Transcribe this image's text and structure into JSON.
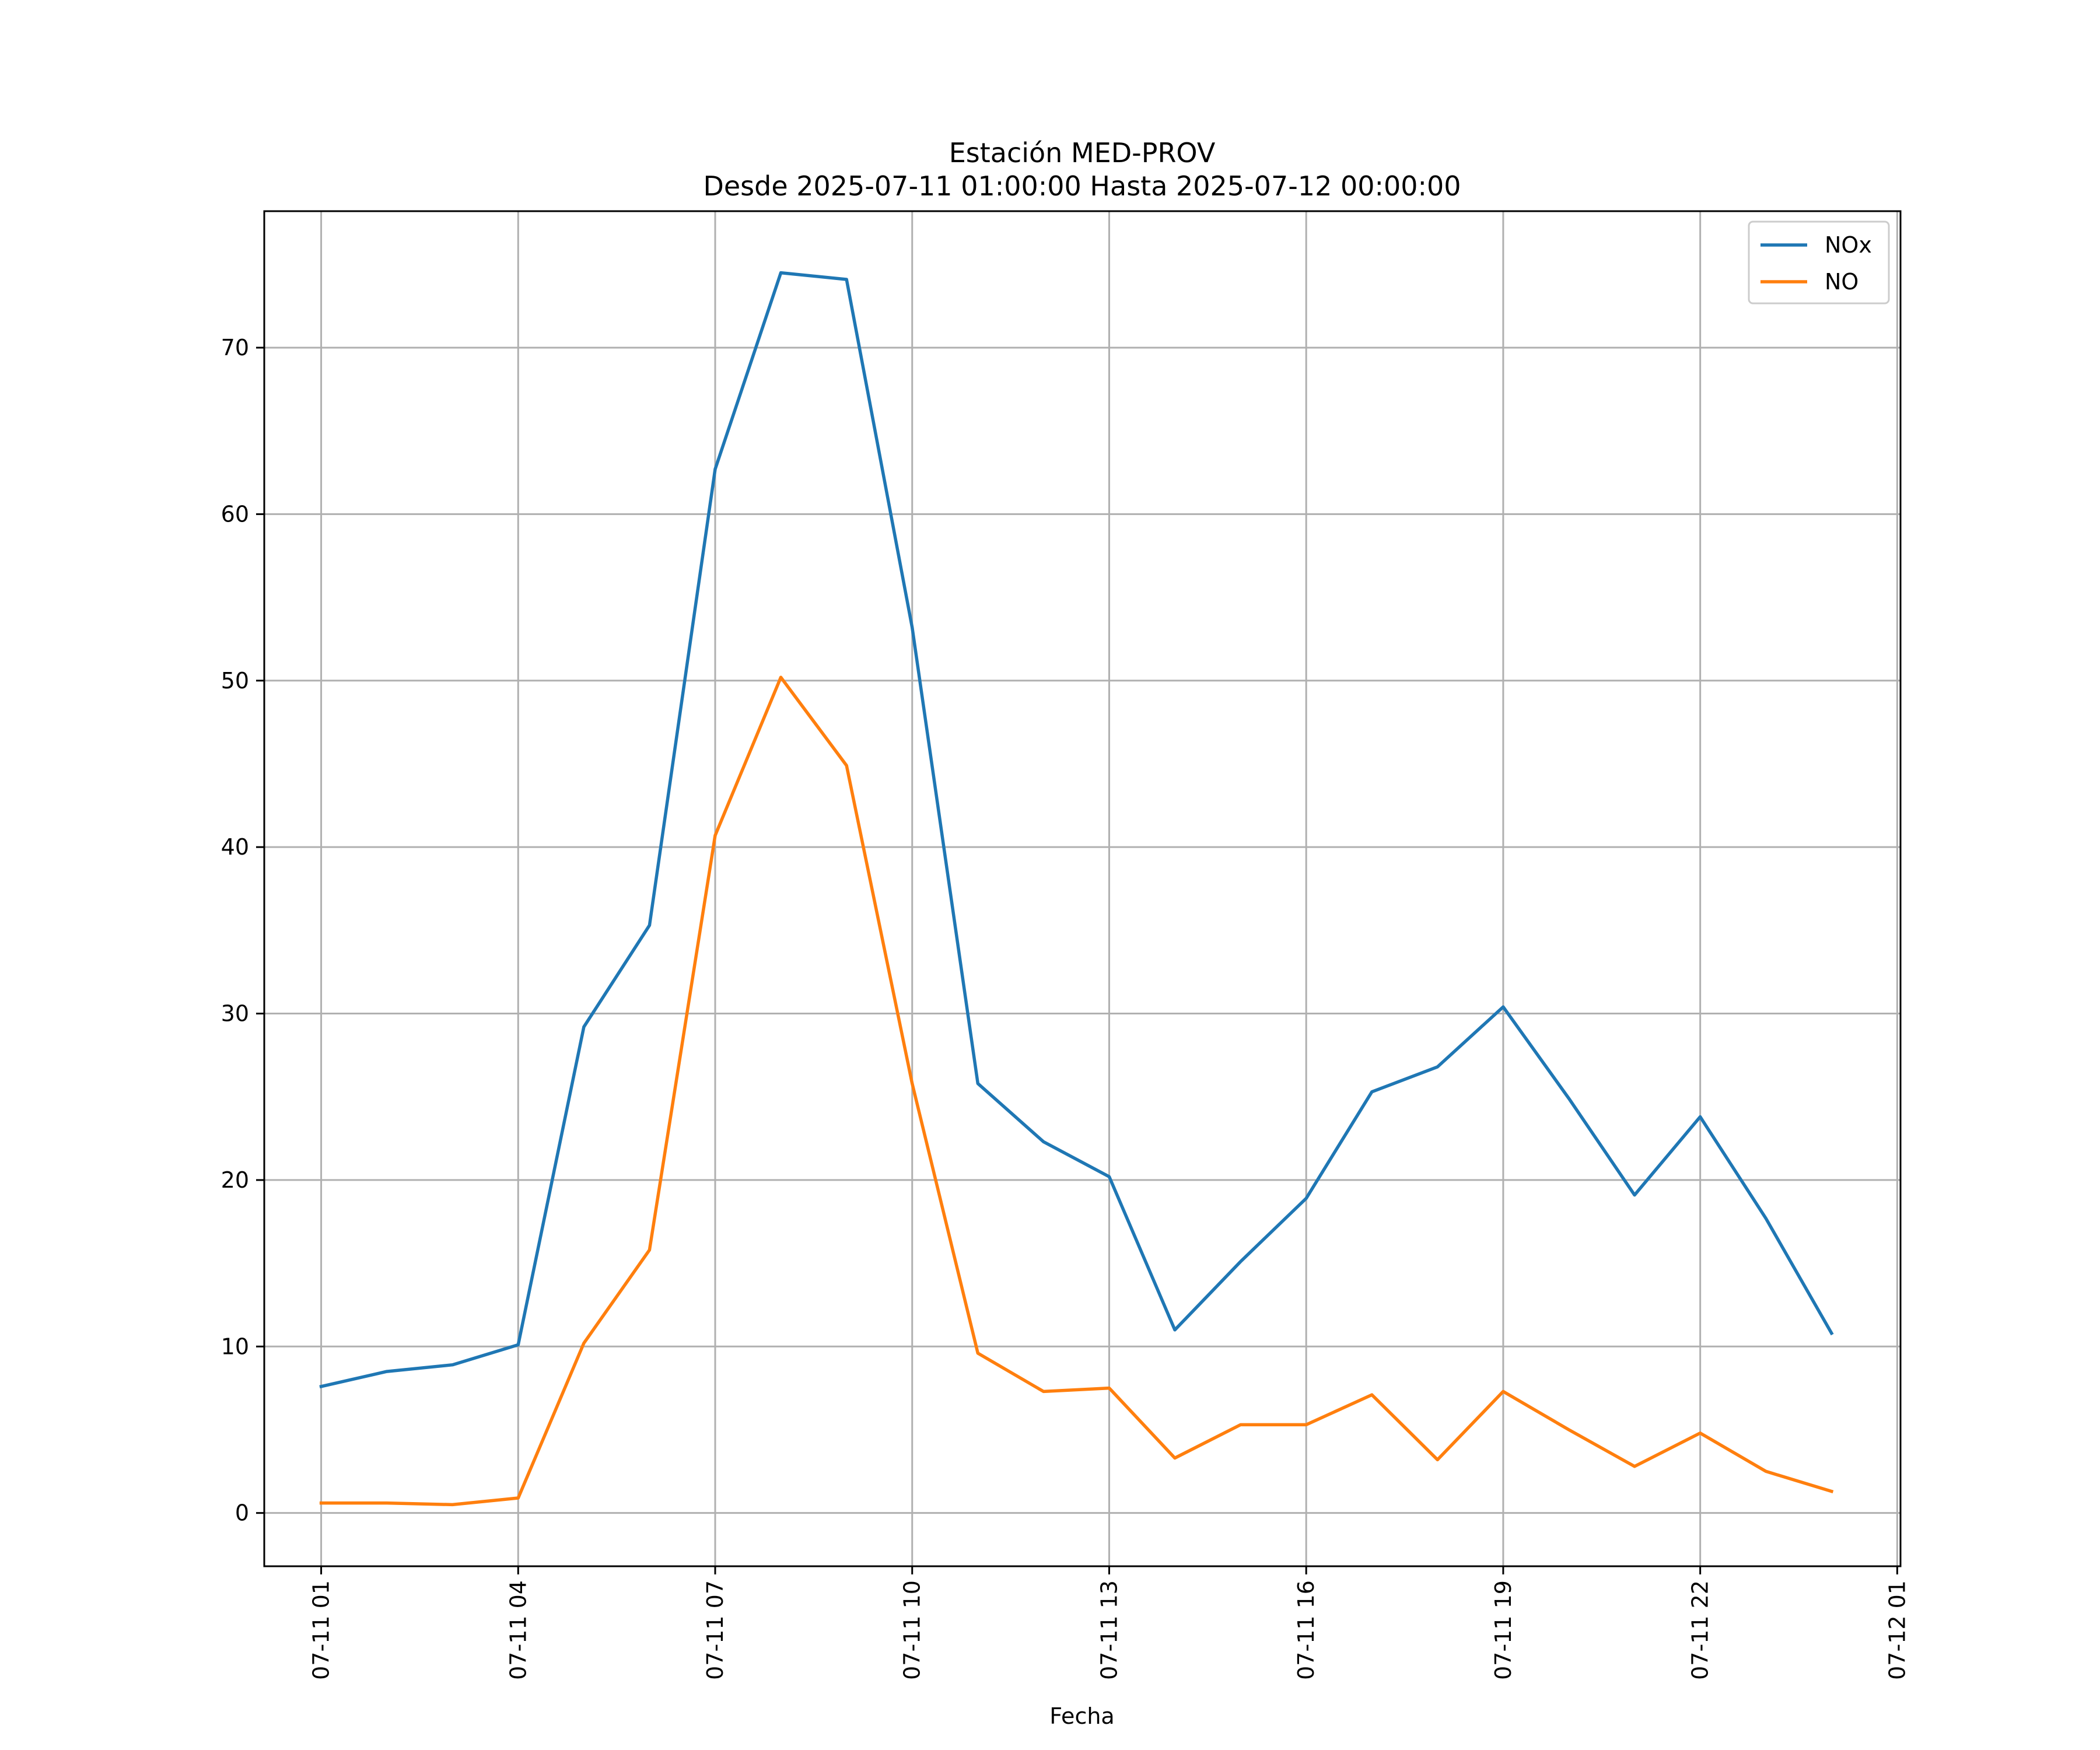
{
  "chart_data": {
    "type": "line",
    "title": "Estación MED-PROV",
    "subtitle": "Desde 2025-07-11 01:00:00 Hasta 2025-07-12 00:00:00",
    "xlabel": "Fecha",
    "ylabel": "",
    "x": [
      "2025-07-11 01:00",
      "2025-07-11 02:00",
      "2025-07-11 03:00",
      "2025-07-11 04:00",
      "2025-07-11 05:00",
      "2025-07-11 06:00",
      "2025-07-11 07:00",
      "2025-07-11 08:00",
      "2025-07-11 09:00",
      "2025-07-11 10:00",
      "2025-07-11 11:00",
      "2025-07-11 12:00",
      "2025-07-11 13:00",
      "2025-07-11 14:00",
      "2025-07-11 15:00",
      "2025-07-11 16:00",
      "2025-07-11 17:00",
      "2025-07-11 18:00",
      "2025-07-11 19:00",
      "2025-07-11 20:00",
      "2025-07-11 21:00",
      "2025-07-11 22:00",
      "2025-07-11 23:00",
      "2025-07-12 00:00"
    ],
    "xlim": [
      "2025-07-11 00:08",
      "2025-07-12 01:03"
    ],
    "xticks": [
      {
        "value": "2025-07-11 01:00",
        "label": "07-11 01"
      },
      {
        "value": "2025-07-11 04:00",
        "label": "07-11 04"
      },
      {
        "value": "2025-07-11 07:00",
        "label": "07-11 07"
      },
      {
        "value": "2025-07-11 10:00",
        "label": "07-11 10"
      },
      {
        "value": "2025-07-11 13:00",
        "label": "07-11 13"
      },
      {
        "value": "2025-07-11 16:00",
        "label": "07-11 16"
      },
      {
        "value": "2025-07-11 19:00",
        "label": "07-11 19"
      },
      {
        "value": "2025-07-11 22:00",
        "label": "07-11 22"
      },
      {
        "value": "2025-07-12 01:00",
        "label": "07-12 01"
      }
    ],
    "ylim": [
      -3.2,
      78.2
    ],
    "yticks": [
      0,
      10,
      20,
      30,
      40,
      50,
      60,
      70
    ],
    "grid": true,
    "legend": "top-right",
    "series": [
      {
        "name": "NOx",
        "color": "#1f77b4",
        "values": [
          7.6,
          8.5,
          8.9,
          10.1,
          29.2,
          35.3,
          62.7,
          74.5,
          74.1,
          53.2,
          25.8,
          22.3,
          20.2,
          11.0,
          15.1,
          18.9,
          25.3,
          26.8,
          30.4,
          24.9,
          19.1,
          23.8,
          17.7,
          10.8
        ]
      },
      {
        "name": "NO",
        "color": "#ff7f0e",
        "values": [
          0.6,
          0.6,
          0.5,
          0.9,
          10.2,
          15.8,
          40.7,
          50.2,
          44.9,
          25.8,
          9.6,
          7.3,
          7.5,
          3.3,
          5.3,
          5.3,
          7.1,
          3.2,
          7.3,
          5.0,
          2.8,
          4.8,
          2.5,
          1.3
        ]
      }
    ]
  }
}
